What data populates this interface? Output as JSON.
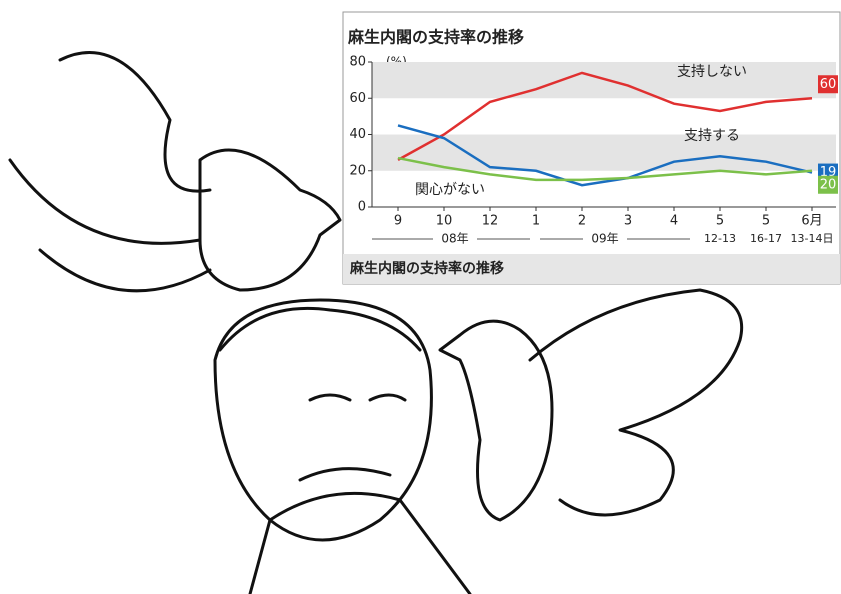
{
  "chart_data": {
    "type": "line",
    "title": "麻生内閣の支持率の推移",
    "caption": "麻生内閣の支持率の推移",
    "y_unit": "(%)",
    "categories": [
      "9",
      "10",
      "12",
      "1",
      "2",
      "3",
      "4",
      "5",
      "5",
      "6月"
    ],
    "category_sublabels": [
      null,
      null,
      null,
      null,
      null,
      null,
      null,
      "12-13",
      "16-17",
      "13-14日"
    ],
    "x_group_labels": [
      "08年",
      "09年"
    ],
    "ylim": [
      0,
      80
    ],
    "yticks": [
      0,
      20,
      40,
      60,
      80
    ],
    "grid": "bands",
    "series": [
      {
        "name": "支持しない",
        "color": "#e03030",
        "values": [
          26,
          40,
          58,
          65,
          74,
          67,
          57,
          53,
          58,
          60
        ]
      },
      {
        "name": "支持する",
        "color": "#1a6ec0",
        "values": [
          45,
          38,
          22,
          20,
          12,
          16,
          25,
          28,
          25,
          19
        ]
      },
      {
        "name": "関心がない",
        "color": "#7cc04a",
        "values": [
          27,
          22,
          18,
          15,
          15,
          16,
          18,
          20,
          18,
          20
        ]
      }
    ]
  }
}
